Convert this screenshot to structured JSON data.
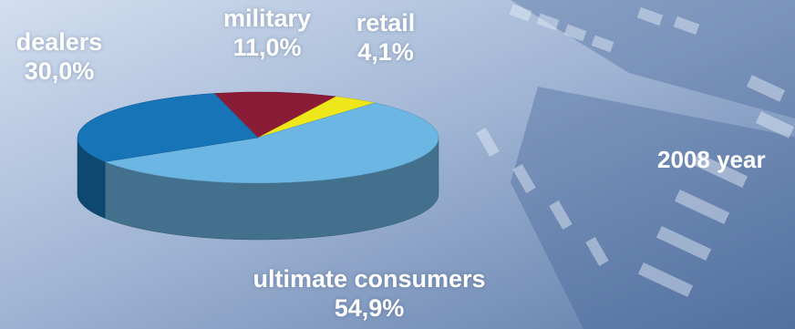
{
  "chart_data": {
    "type": "pie",
    "title": "",
    "annotation": "2008 year",
    "slices": [
      {
        "label": "ultimate consumers",
        "value": 54.9,
        "value_text": "54,9%",
        "color": "#6cb6e4"
      },
      {
        "label": "dealers",
        "value": 30.0,
        "value_text": "30,0%",
        "color": "#1774b6"
      },
      {
        "label": "military",
        "value": 11.0,
        "value_text": "11,0%",
        "color": "#8b1c38"
      },
      {
        "label": "retail",
        "value": 4.1,
        "value_text": "4,1%",
        "color": "#eee81a"
      }
    ]
  }
}
